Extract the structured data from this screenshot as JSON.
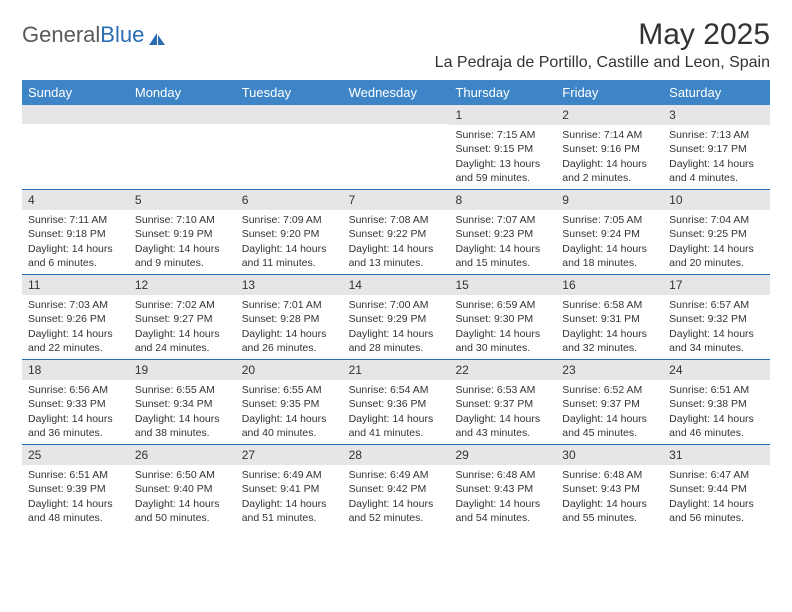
{
  "logo": {
    "text_gray": "General",
    "text_blue": "Blue"
  },
  "title": "May 2025",
  "location": "La Pedraja de Portillo, Castille and Leon, Spain",
  "colors": {
    "header_bg": "#3d85c6",
    "header_text": "#ffffff",
    "week_border": "#2a6db3",
    "daynum_bg": "#e6e6e6",
    "body_text": "#333333",
    "logo_gray": "#5a5a5a",
    "logo_blue": "#2a6db3"
  },
  "day_names": [
    "Sunday",
    "Monday",
    "Tuesday",
    "Wednesday",
    "Thursday",
    "Friday",
    "Saturday"
  ],
  "weeks": [
    [
      {
        "blank": true
      },
      {
        "blank": true
      },
      {
        "blank": true
      },
      {
        "blank": true
      },
      {
        "day": "1",
        "sunrise": "7:15 AM",
        "sunset": "9:15 PM",
        "daylight": "13 hours and 59 minutes."
      },
      {
        "day": "2",
        "sunrise": "7:14 AM",
        "sunset": "9:16 PM",
        "daylight": "14 hours and 2 minutes."
      },
      {
        "day": "3",
        "sunrise": "7:13 AM",
        "sunset": "9:17 PM",
        "daylight": "14 hours and 4 minutes."
      }
    ],
    [
      {
        "day": "4",
        "sunrise": "7:11 AM",
        "sunset": "9:18 PM",
        "daylight": "14 hours and 6 minutes."
      },
      {
        "day": "5",
        "sunrise": "7:10 AM",
        "sunset": "9:19 PM",
        "daylight": "14 hours and 9 minutes."
      },
      {
        "day": "6",
        "sunrise": "7:09 AM",
        "sunset": "9:20 PM",
        "daylight": "14 hours and 11 minutes."
      },
      {
        "day": "7",
        "sunrise": "7:08 AM",
        "sunset": "9:22 PM",
        "daylight": "14 hours and 13 minutes."
      },
      {
        "day": "8",
        "sunrise": "7:07 AM",
        "sunset": "9:23 PM",
        "daylight": "14 hours and 15 minutes."
      },
      {
        "day": "9",
        "sunrise": "7:05 AM",
        "sunset": "9:24 PM",
        "daylight": "14 hours and 18 minutes."
      },
      {
        "day": "10",
        "sunrise": "7:04 AM",
        "sunset": "9:25 PM",
        "daylight": "14 hours and 20 minutes."
      }
    ],
    [
      {
        "day": "11",
        "sunrise": "7:03 AM",
        "sunset": "9:26 PM",
        "daylight": "14 hours and 22 minutes."
      },
      {
        "day": "12",
        "sunrise": "7:02 AM",
        "sunset": "9:27 PM",
        "daylight": "14 hours and 24 minutes."
      },
      {
        "day": "13",
        "sunrise": "7:01 AM",
        "sunset": "9:28 PM",
        "daylight": "14 hours and 26 minutes."
      },
      {
        "day": "14",
        "sunrise": "7:00 AM",
        "sunset": "9:29 PM",
        "daylight": "14 hours and 28 minutes."
      },
      {
        "day": "15",
        "sunrise": "6:59 AM",
        "sunset": "9:30 PM",
        "daylight": "14 hours and 30 minutes."
      },
      {
        "day": "16",
        "sunrise": "6:58 AM",
        "sunset": "9:31 PM",
        "daylight": "14 hours and 32 minutes."
      },
      {
        "day": "17",
        "sunrise": "6:57 AM",
        "sunset": "9:32 PM",
        "daylight": "14 hours and 34 minutes."
      }
    ],
    [
      {
        "day": "18",
        "sunrise": "6:56 AM",
        "sunset": "9:33 PM",
        "daylight": "14 hours and 36 minutes."
      },
      {
        "day": "19",
        "sunrise": "6:55 AM",
        "sunset": "9:34 PM",
        "daylight": "14 hours and 38 minutes."
      },
      {
        "day": "20",
        "sunrise": "6:55 AM",
        "sunset": "9:35 PM",
        "daylight": "14 hours and 40 minutes."
      },
      {
        "day": "21",
        "sunrise": "6:54 AM",
        "sunset": "9:36 PM",
        "daylight": "14 hours and 41 minutes."
      },
      {
        "day": "22",
        "sunrise": "6:53 AM",
        "sunset": "9:37 PM",
        "daylight": "14 hours and 43 minutes."
      },
      {
        "day": "23",
        "sunrise": "6:52 AM",
        "sunset": "9:37 PM",
        "daylight": "14 hours and 45 minutes."
      },
      {
        "day": "24",
        "sunrise": "6:51 AM",
        "sunset": "9:38 PM",
        "daylight": "14 hours and 46 minutes."
      }
    ],
    [
      {
        "day": "25",
        "sunrise": "6:51 AM",
        "sunset": "9:39 PM",
        "daylight": "14 hours and 48 minutes."
      },
      {
        "day": "26",
        "sunrise": "6:50 AM",
        "sunset": "9:40 PM",
        "daylight": "14 hours and 50 minutes."
      },
      {
        "day": "27",
        "sunrise": "6:49 AM",
        "sunset": "9:41 PM",
        "daylight": "14 hours and 51 minutes."
      },
      {
        "day": "28",
        "sunrise": "6:49 AM",
        "sunset": "9:42 PM",
        "daylight": "14 hours and 52 minutes."
      },
      {
        "day": "29",
        "sunrise": "6:48 AM",
        "sunset": "9:43 PM",
        "daylight": "14 hours and 54 minutes."
      },
      {
        "day": "30",
        "sunrise": "6:48 AM",
        "sunset": "9:43 PM",
        "daylight": "14 hours and 55 minutes."
      },
      {
        "day": "31",
        "sunrise": "6:47 AM",
        "sunset": "9:44 PM",
        "daylight": "14 hours and 56 minutes."
      }
    ]
  ],
  "labels": {
    "sunrise": "Sunrise:",
    "sunset": "Sunset:",
    "daylight": "Daylight:"
  }
}
